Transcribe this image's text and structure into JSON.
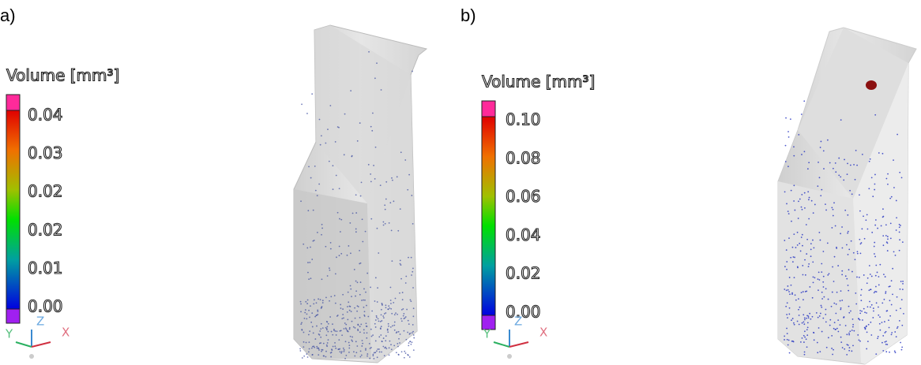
{
  "panels": [
    {
      "label": "a)",
      "legend_title": "Volume [mm³]",
      "ticks": [
        "0.04",
        "0.03",
        "0.02",
        "0.02",
        "0.01",
        "0.00"
      ],
      "axes": [
        "Z",
        "Y",
        "X"
      ]
    },
    {
      "label": "b)",
      "legend_title": "Volume [mm³]",
      "ticks": [
        "0.10",
        "0.08",
        "0.06",
        "0.04",
        "0.02",
        "0.00"
      ],
      "axes": [
        "Z",
        "Y",
        "X"
      ]
    }
  ]
}
